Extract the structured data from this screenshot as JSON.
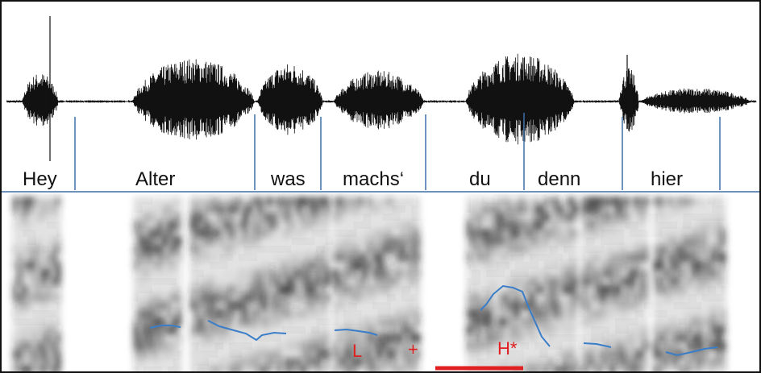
{
  "words": [
    "Hey",
    "Alter",
    "was",
    "machs‘",
    "du",
    "denn",
    "hier"
  ],
  "tones": [
    "L",
    "+",
    "H*"
  ]
}
